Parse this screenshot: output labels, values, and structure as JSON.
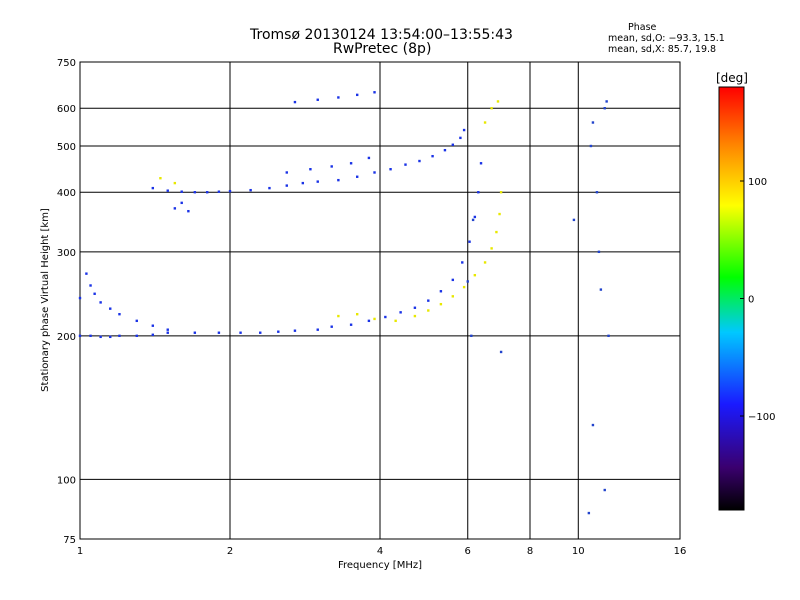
{
  "chart_data": {
    "type": "scatter",
    "title": "Tromsø 20130124 13:54:00–13:55:43",
    "subtitle": "RwPretec (8p)",
    "xlabel": "Frequency [MHz]",
    "ylabel": "Stationary phase Virtual Height [km]",
    "x_scale": "log",
    "y_scale": "log",
    "xlim": [
      1,
      16
    ],
    "ylim": [
      75,
      750
    ],
    "x_ticks": [
      1,
      2,
      4,
      6,
      8,
      10,
      16
    ],
    "x_tick_labels": [
      "1",
      "2",
      "4",
      "6",
      "8",
      "10",
      "16"
    ],
    "y_ticks": [
      75,
      100,
      200,
      300,
      400,
      500,
      600,
      750
    ],
    "y_tick_labels": [
      "75",
      "100",
      "200",
      "300",
      "400",
      "500",
      "600",
      "750"
    ],
    "grid": true,
    "phase_info": {
      "heading": "Phase",
      "line_o": "mean, sd,O: −93.3, 15.1",
      "line_x": "mean, sd,X:  85.7, 19.8"
    },
    "colorbar": {
      "label": "[deg]",
      "range": [
        -180,
        180
      ],
      "ticks": [
        100,
        0,
        -100
      ],
      "tick_labels": [
        "100",
        "0",
        "−100"
      ],
      "colors": [
        "#000000",
        "#3a006e",
        "#1a1aff",
        "#00c8ff",
        "#00ff00",
        "#ffff00",
        "#ff8800",
        "#ff0000"
      ]
    },
    "series": [
      {
        "phase_deg": -93.3,
        "color": "#1a33e6",
        "points": [
          [
            1.0,
            200
          ],
          [
            1.05,
            200
          ],
          [
            1.1,
            199
          ],
          [
            1.15,
            199
          ],
          [
            1.2,
            200
          ],
          [
            1.3,
            200
          ],
          [
            1.4,
            201
          ],
          [
            1.5,
            203
          ],
          [
            1.7,
            203
          ],
          [
            1.9,
            203
          ],
          [
            2.1,
            203
          ],
          [
            2.3,
            203
          ],
          [
            2.5,
            204
          ],
          [
            2.7,
            205
          ],
          [
            3.0,
            206
          ],
          [
            3.2,
            209
          ],
          [
            3.5,
            211
          ],
          [
            3.8,
            215
          ],
          [
            4.1,
            219
          ],
          [
            4.4,
            224
          ],
          [
            4.7,
            229
          ],
          [
            5.0,
            237
          ],
          [
            5.3,
            248
          ],
          [
            5.6,
            262
          ],
          [
            5.85,
            285
          ],
          [
            6.05,
            315
          ],
          [
            6.2,
            355
          ],
          [
            6.3,
            400
          ],
          [
            6.38,
            460
          ],
          [
            1.0,
            240
          ],
          [
            1.03,
            270
          ],
          [
            1.05,
            255
          ],
          [
            1.07,
            245
          ],
          [
            1.1,
            235
          ],
          [
            1.15,
            228
          ],
          [
            1.2,
            222
          ],
          [
            1.3,
            215
          ],
          [
            1.4,
            210
          ],
          [
            1.5,
            206
          ],
          [
            1.4,
            408
          ],
          [
            1.5,
            403
          ],
          [
            1.6,
            401
          ],
          [
            1.7,
            400
          ],
          [
            1.8,
            400
          ],
          [
            1.9,
            401
          ],
          [
            2.0,
            402
          ],
          [
            2.2,
            404
          ],
          [
            2.4,
            408
          ],
          [
            2.6,
            413
          ],
          [
            2.8,
            418
          ],
          [
            3.0,
            421
          ],
          [
            3.3,
            424
          ],
          [
            3.6,
            431
          ],
          [
            3.9,
            440
          ],
          [
            4.2,
            447
          ],
          [
            4.5,
            457
          ],
          [
            4.8,
            465
          ],
          [
            5.1,
            476
          ],
          [
            5.4,
            490
          ],
          [
            5.6,
            503
          ],
          [
            5.8,
            520
          ],
          [
            5.9,
            540
          ],
          [
            2.6,
            440
          ],
          [
            2.9,
            447
          ],
          [
            3.2,
            453
          ],
          [
            3.5,
            460
          ],
          [
            3.8,
            472
          ],
          [
            2.7,
            618
          ],
          [
            3.0,
            625
          ],
          [
            3.3,
            632
          ],
          [
            3.6,
            640
          ],
          [
            3.9,
            648
          ],
          [
            1.55,
            370
          ],
          [
            1.6,
            380
          ],
          [
            1.65,
            365
          ]
        ]
      },
      {
        "phase_deg": 85.7,
        "color": "#e8e800",
        "points": [
          [
            3.3,
            220
          ],
          [
            3.6,
            222
          ],
          [
            3.9,
            217
          ],
          [
            4.3,
            215
          ],
          [
            4.7,
            220
          ],
          [
            5.0,
            226
          ],
          [
            5.3,
            233
          ],
          [
            5.6,
            242
          ],
          [
            5.9,
            253
          ],
          [
            6.2,
            268
          ],
          [
            6.5,
            285
          ],
          [
            6.7,
            305
          ],
          [
            6.85,
            330
          ],
          [
            6.95,
            360
          ],
          [
            7.0,
            400
          ],
          [
            6.5,
            560
          ],
          [
            6.7,
            600
          ],
          [
            6.9,
            620
          ],
          [
            1.45,
            428
          ],
          [
            1.55,
            418
          ]
        ]
      },
      {
        "phase_deg": -100,
        "color": "#2244cc",
        "points": [
          [
            10.5,
            85
          ],
          [
            10.6,
            500
          ],
          [
            10.7,
            560
          ],
          [
            10.9,
            400
          ],
          [
            11.0,
            300
          ],
          [
            11.1,
            250
          ],
          [
            11.3,
            600
          ],
          [
            11.4,
            620
          ],
          [
            11.5,
            200
          ],
          [
            11.3,
            95
          ],
          [
            10.7,
            130
          ],
          [
            9.8,
            350
          ],
          [
            7.0,
            185
          ],
          [
            6.0,
            260
          ],
          [
            6.1,
            200
          ],
          [
            6.15,
            350
          ]
        ]
      }
    ]
  }
}
